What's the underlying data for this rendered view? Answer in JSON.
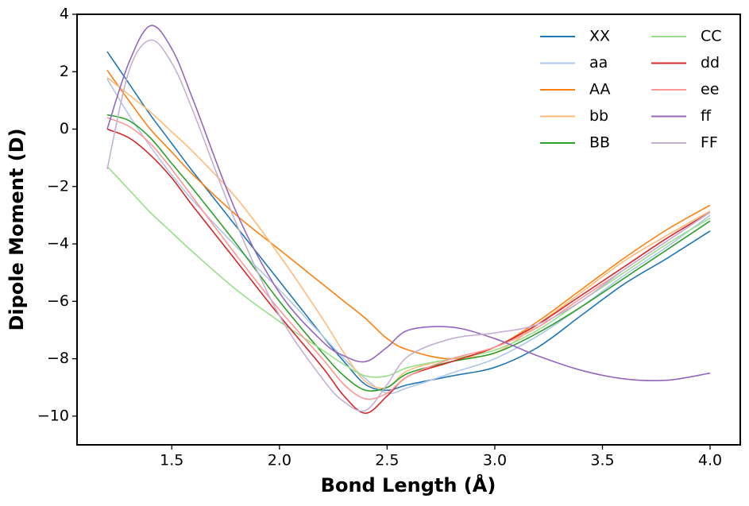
{
  "chart_data": {
    "type": "line",
    "x_label": "Bond Length (Å)",
    "y_label": "Dipole Moment (D)",
    "x": [
      1.2,
      1.3,
      1.4,
      1.5,
      1.6,
      1.8,
      2.0,
      2.2,
      2.3,
      2.4,
      2.5,
      2.6,
      2.8,
      3.0,
      3.2,
      3.4,
      3.6,
      3.8,
      4.0
    ],
    "xlim": [
      1.06,
      4.14
    ],
    "ylim": [
      -11,
      4
    ],
    "xticks": [
      {
        "value": 1.5,
        "label": "1.5"
      },
      {
        "value": 2.0,
        "label": "2.0"
      },
      {
        "value": 2.5,
        "label": "2.5"
      },
      {
        "value": 3.0,
        "label": "3.0"
      },
      {
        "value": 3.5,
        "label": "3.5"
      },
      {
        "value": 4.0,
        "label": "4.0"
      }
    ],
    "yticks": [
      {
        "value": -10,
        "label": "−10"
      },
      {
        "value": -8,
        "label": "−8"
      },
      {
        "value": -6,
        "label": "−6"
      },
      {
        "value": -4,
        "label": "−4"
      },
      {
        "value": -2,
        "label": "−2"
      },
      0,
      2,
      4
    ],
    "legend": "upper right",
    "legend_columns": 2,
    "series": [
      {
        "name": "XX",
        "color": "#1f77b4",
        "values": [
          2.7,
          1.6,
          0.5,
          -0.5,
          -1.5,
          -3.4,
          -5.3,
          -7.2,
          -8.1,
          -8.9,
          -9.1,
          -8.9,
          -8.6,
          -8.3,
          -7.6,
          -6.5,
          -5.4,
          -4.5,
          -3.55
        ]
      },
      {
        "name": "aa",
        "color": "#aec7e8",
        "values": [
          1.75,
          0.5,
          -0.6,
          -1.6,
          -2.5,
          -4.1,
          -5.6,
          -7.2,
          -8.0,
          -8.7,
          -9.2,
          -9.0,
          -8.5,
          -8.0,
          -7.2,
          -6.2,
          -5.1,
          -4.1,
          -3.0
        ]
      },
      {
        "name": "AA",
        "color": "#ff7f0e",
        "values": [
          2.05,
          1.0,
          0.0,
          -0.8,
          -1.6,
          -3.0,
          -4.2,
          -5.4,
          -6.0,
          -6.6,
          -7.3,
          -7.7,
          -8.0,
          -7.6,
          -6.7,
          -5.6,
          -4.5,
          -3.5,
          -2.65
        ]
      },
      {
        "name": "bb",
        "color": "#ffbb78",
        "values": [
          1.8,
          1.2,
          0.6,
          -0.1,
          -0.8,
          -2.4,
          -4.4,
          -6.6,
          -7.8,
          -8.8,
          -9.0,
          -8.4,
          -8.0,
          -7.8,
          -6.8,
          -5.7,
          -4.6,
          -3.7,
          -2.85
        ]
      },
      {
        "name": "BB",
        "color": "#2ca02c",
        "values": [
          0.5,
          0.3,
          -0.3,
          -1.2,
          -2.1,
          -4.0,
          -6.0,
          -7.8,
          -8.6,
          -9.1,
          -9.0,
          -8.5,
          -8.1,
          -7.8,
          -7.1,
          -6.2,
          -5.2,
          -4.2,
          -3.2
        ]
      },
      {
        "name": "CC",
        "color": "#98df8a",
        "values": [
          -1.3,
          -2.1,
          -2.9,
          -3.6,
          -4.3,
          -5.6,
          -6.7,
          -7.7,
          -8.2,
          -8.6,
          -8.6,
          -8.3,
          -8.0,
          -7.7,
          -7.0,
          -6.0,
          -5.0,
          -4.0,
          -3.1
        ]
      },
      {
        "name": "dd",
        "color": "#d62728",
        "values": [
          0.0,
          -0.3,
          -0.9,
          -1.7,
          -2.7,
          -4.6,
          -6.5,
          -8.3,
          -9.3,
          -9.9,
          -9.3,
          -8.6,
          -8.1,
          -7.6,
          -6.8,
          -5.8,
          -4.8,
          -3.8,
          -2.9
        ]
      },
      {
        "name": "ee",
        "color": "#ff9896",
        "values": [
          0.4,
          0.1,
          -0.5,
          -1.4,
          -2.4,
          -4.4,
          -6.3,
          -8.0,
          -8.9,
          -9.4,
          -9.2,
          -8.6,
          -8.0,
          -7.6,
          -6.9,
          -5.9,
          -4.9,
          -3.9,
          -2.9
        ]
      },
      {
        "name": "ff",
        "color": "#9467bd",
        "values": [
          0.0,
          2.3,
          3.6,
          2.8,
          1.0,
          -2.9,
          -5.7,
          -7.4,
          -7.9,
          -8.1,
          -7.6,
          -7.0,
          -6.9,
          -7.3,
          -7.9,
          -8.4,
          -8.7,
          -8.75,
          -8.5
        ]
      },
      {
        "name": "FF",
        "color": "#c5b0d5",
        "values": [
          -1.4,
          2.0,
          3.1,
          2.3,
          0.6,
          -3.3,
          -6.5,
          -8.7,
          -9.5,
          -9.8,
          -8.9,
          -7.9,
          -7.3,
          -7.1,
          -6.8,
          -6.0,
          -4.9,
          -3.9,
          -2.9
        ]
      }
    ]
  }
}
